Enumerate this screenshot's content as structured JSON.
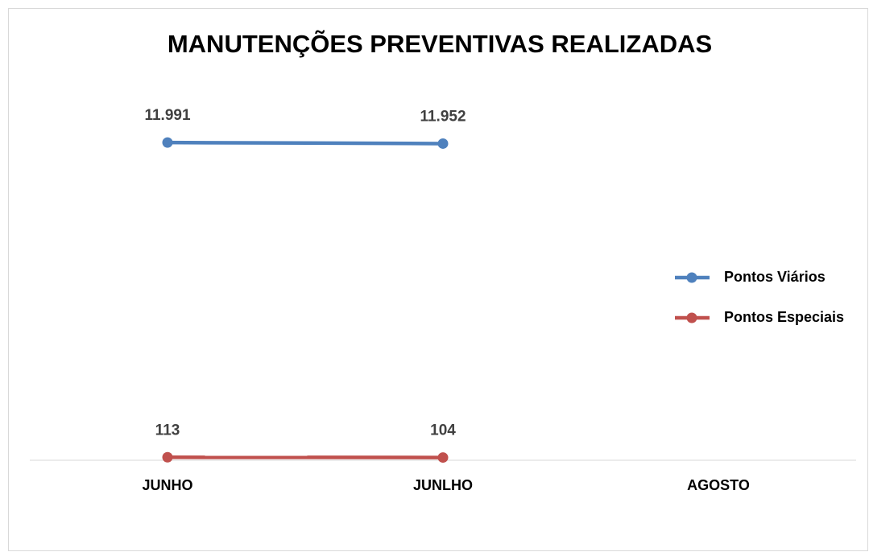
{
  "chart_data": {
    "type": "line",
    "title": "MANUTENÇÕES PREVENTIVAS REALIZADAS",
    "categories": [
      "JUNHO",
      "JUNLHO",
      "AGOSTO"
    ],
    "series": [
      {
        "name": "Pontos Viários",
        "color": "#4f81bd",
        "values": [
          11991,
          11952,
          null
        ],
        "value_labels": [
          "11.991",
          "11.952",
          null
        ]
      },
      {
        "name": "Pontos Especiais",
        "color": "#c0504d",
        "values": [
          113,
          104,
          null
        ],
        "value_labels": [
          "113",
          "104",
          null
        ]
      }
    ],
    "ylim": [
      0,
      14000
    ],
    "legend": "right"
  }
}
